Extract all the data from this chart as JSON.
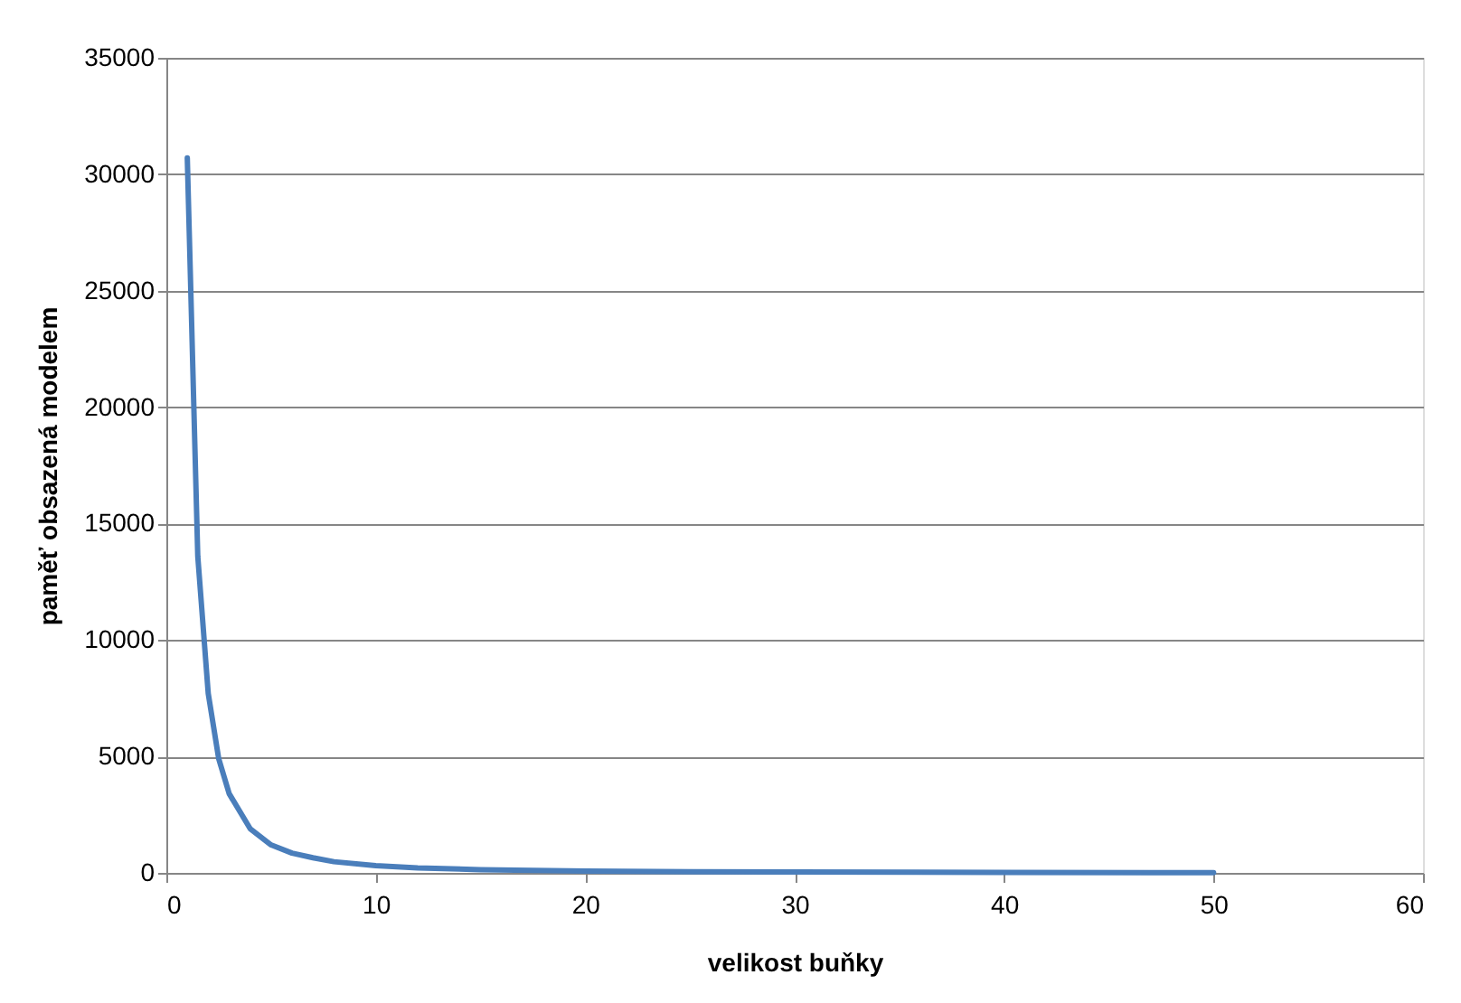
{
  "chart_data": {
    "type": "line",
    "xlabel": "velikost buňky",
    "ylabel": "paměť obsazená modelem",
    "x": [
      1,
      1.5,
      2,
      2.5,
      3,
      4,
      5,
      6,
      7,
      8,
      10,
      12,
      15,
      20,
      25,
      30,
      40,
      50
    ],
    "series": [
      {
        "color": "#4a7ebb",
        "values": [
          30700,
          13600,
          7700,
          4900,
          3400,
          1900,
          1200,
          850,
          650,
          480,
          310,
          210,
          140,
          80,
          50,
          40,
          20,
          10
        ]
      }
    ],
    "xlim": [
      0,
      60
    ],
    "xticks": [
      0,
      10,
      20,
      30,
      40,
      50,
      60
    ],
    "ylim": [
      0,
      35000
    ],
    "yticks": [
      0,
      5000,
      10000,
      15000,
      20000,
      25000,
      30000,
      35000
    ],
    "grid": "y",
    "marker": "none",
    "line_style": "solid"
  }
}
